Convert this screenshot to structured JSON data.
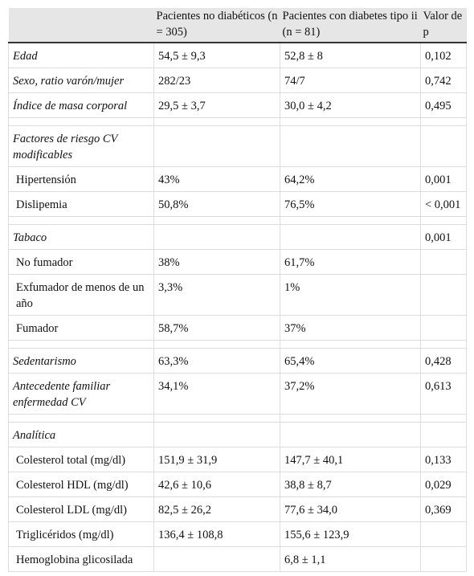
{
  "table": {
    "header": [
      "Pacientes no diabéticos (n = 305)",
      "Pacientes con diabetes tipo ii (n = 81)",
      "Valor de p"
    ],
    "rows": [
      [
        "Edad",
        "54,5 ± 9,3",
        "52,8 ± 8",
        "0,102"
      ],
      [
        "Sexo, ratio varón/mujer",
        "282/23",
        "74/7",
        "0,742"
      ],
      [
        "Índice de masa corporal",
        "29,5 ± 3,7",
        "30,0 ± 4,2",
        "0,495"
      ],
      [
        "Factores de riesgo CV modificables"
      ],
      [
        "Hipertensión",
        "43%",
        "64,2%",
        "0,001"
      ],
      [
        "Dislipemia",
        "50,8%",
        "76,5%",
        "< 0,001"
      ],
      [
        "Tabaco",
        null,
        null,
        "0,001"
      ],
      [
        "No fumador",
        "38%",
        "61,7%"
      ],
      [
        "Exfumador de menos de un año",
        "3,3%",
        "1%"
      ],
      [
        "Fumador",
        "58,7%",
        "37%"
      ],
      [
        "Sedentarismo",
        "63,3%",
        "65,4%",
        "0,428"
      ],
      [
        "Antecedente familiar enfermedad CV",
        "34,1%",
        "37,2%",
        "0,613"
      ],
      [
        "Analítica"
      ],
      [
        "Colesterol total (mg/dl)",
        "151,9 ± 31,9",
        "147,7 ± 40,1",
        "0,133"
      ],
      [
        "Colesterol HDL (mg/dl)",
        "42,6 ± 10,6",
        "38,8 ± 8,7",
        "0,029"
      ],
      [
        "Colesterol LDL (mg/dl)",
        "82,5 ± 26,2",
        "77,6 ± 34,0",
        "0,369"
      ],
      [
        "Triglicéridos (mg/dl)",
        "136,4 ± 108,8",
        "155,6 ± 123,9"
      ],
      [
        "Hemoglobina glicosilada",
        null,
        "6,8 ± 1,1"
      ]
    ]
  }
}
